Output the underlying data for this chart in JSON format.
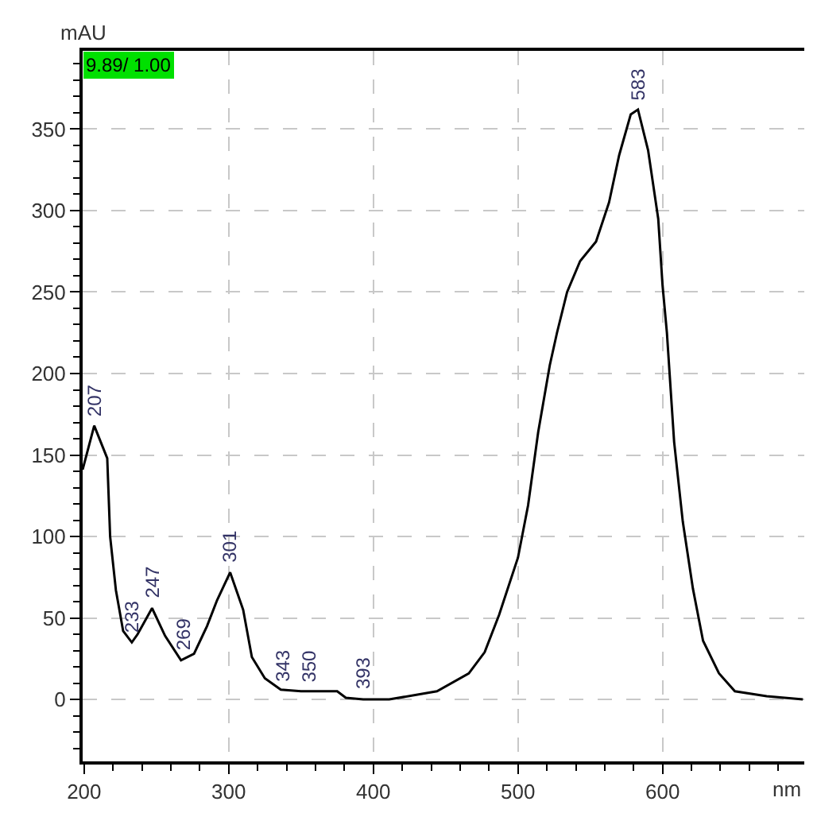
{
  "chart_data": {
    "type": "line",
    "xlabel": "nm",
    "ylabel": "mAU",
    "annotations": [
      "9.89/ 1.00",
      {
        "text": "207",
        "x": 207,
        "y": 168
      },
      {
        "text": "233",
        "x": 233,
        "y": 35
      },
      {
        "text": "247",
        "x": 247,
        "y": 56
      },
      {
        "text": "269",
        "x": 269,
        "y": 24
      },
      {
        "text": "301",
        "x": 301,
        "y": 78
      },
      {
        "text": "343",
        "x": 343,
        "y": 5
      },
      {
        "text": "350",
        "x": 350,
        "y": 5
      },
      {
        "text": "393",
        "x": 393,
        "y": 0
      },
      {
        "text": "583",
        "x": 583,
        "y": 362
      }
    ],
    "x": [
      199,
      207,
      216,
      218,
      222,
      227,
      233,
      237,
      247,
      256,
      267,
      276,
      285,
      292,
      301,
      310,
      316,
      325,
      336,
      350,
      375,
      381,
      393,
      411,
      444,
      466,
      477,
      487,
      500,
      507,
      514,
      522,
      527,
      534,
      543,
      554,
      563,
      570,
      578,
      583,
      590,
      597,
      600,
      603,
      608,
      614,
      621,
      628,
      639,
      650,
      672,
      697
    ],
    "series": [
      {
        "color": "#000000",
        "values": [
          141,
          168,
          148,
          100,
          67,
          42,
          35,
          40,
          56,
          39,
          24,
          28,
          45,
          61,
          78,
          55,
          26,
          13,
          6,
          5,
          5,
          1,
          0,
          0,
          5,
          16,
          29,
          52,
          87,
          119,
          164,
          205,
          225,
          250,
          269,
          281,
          305,
          334,
          359,
          362,
          337,
          295,
          254,
          225,
          158,
          109,
          68,
          36,
          16,
          5,
          2,
          0
        ]
      }
    ],
    "xlim": [
      199,
      698
    ],
    "ylim": [
      -38,
      398
    ],
    "xticks": [
      200,
      300,
      400,
      500,
      600
    ],
    "yticks": [
      0,
      50,
      100,
      150,
      200,
      250,
      300,
      350
    ],
    "grid": true,
    "marker": "none",
    "line_style": "solid"
  }
}
